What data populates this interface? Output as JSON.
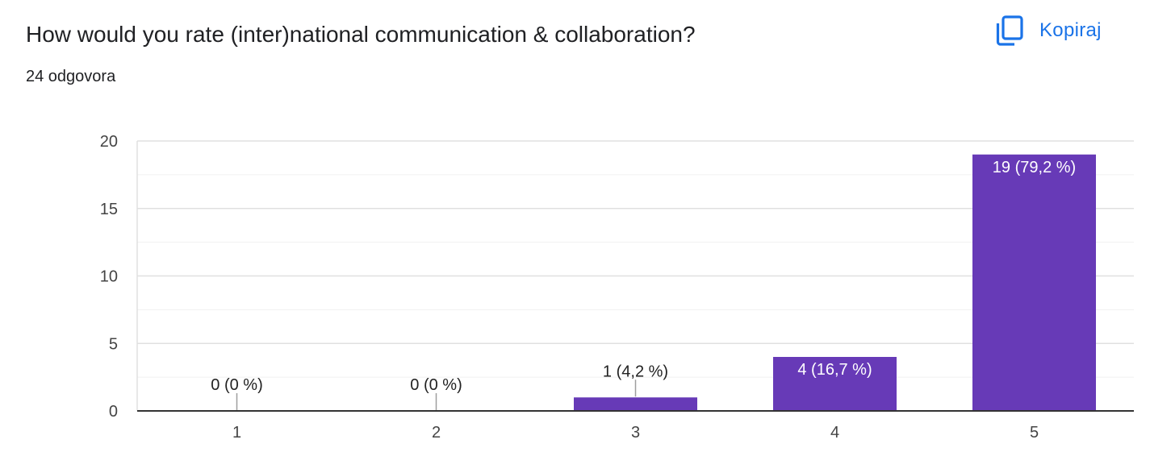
{
  "question": {
    "title": "How would you rate (inter)national communication & collaboration?",
    "response_count": "24 odgovora"
  },
  "copy_button": {
    "label": "Kopiraj",
    "icon": "copy-icon"
  },
  "colors": {
    "bar": "#673ab7",
    "accent": "#1a73e8",
    "text": "#202124",
    "label_inside": "#ffffff",
    "label_outside": "#222222"
  },
  "chart_data": {
    "type": "bar",
    "categories": [
      "1",
      "2",
      "3",
      "4",
      "5"
    ],
    "values": [
      0,
      0,
      1,
      4,
      19
    ],
    "data_labels": [
      "0 (0 %)",
      "0 (0 %)",
      "1 (4,2 %)",
      "4 (16,7 %)",
      "19 (79,2 %)"
    ],
    "y_ticks": [
      "0",
      "5",
      "10",
      "15",
      "20"
    ],
    "ylim": [
      0,
      20
    ],
    "grid": true,
    "xlabel": "",
    "ylabel": ""
  }
}
